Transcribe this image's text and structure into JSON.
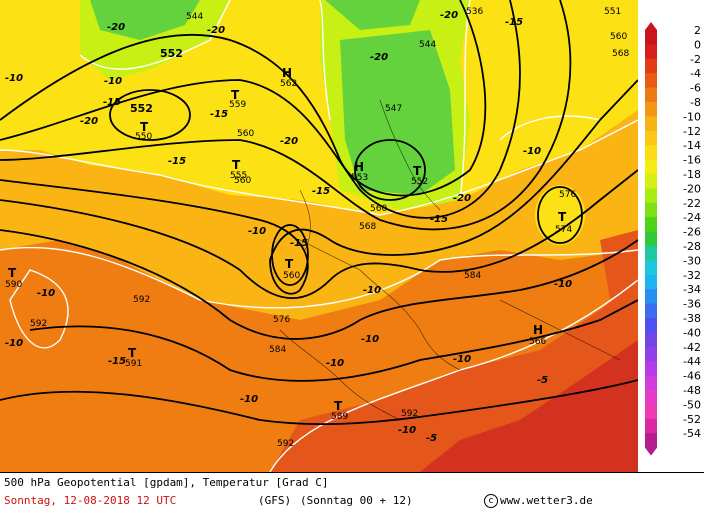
{
  "footer": {
    "title": "500 hPa Geopotential [gpdam], Temperatur [Grad C]",
    "date": "Sonntag, 12-08-2018  12 UTC",
    "model": "(GFS)",
    "run": "(Sonntag 00 + 12)",
    "credit": "www.wetter3.de",
    "credit_symbol": "c"
  },
  "legend": {
    "levels": [
      "2",
      "0",
      "-2",
      "-4",
      "-6",
      "-8",
      "-10",
      "-12",
      "-14",
      "-16",
      "-18",
      "-20",
      "-22",
      "-24",
      "-26",
      "-28",
      "-30",
      "-32",
      "-34",
      "-36",
      "-38",
      "-40",
      "-42",
      "-44",
      "-46",
      "-48",
      "-50",
      "-52",
      "-54"
    ],
    "colors": [
      "#c8141e",
      "#d81e1e",
      "#e43c14",
      "#ea5a14",
      "#ee7814",
      "#f29614",
      "#f6b414",
      "#fac814",
      "#fcdc14",
      "#f4ec14",
      "#d4f014",
      "#a8ec14",
      "#7ce014",
      "#50d214",
      "#30c83c",
      "#1ec8a0",
      "#1ec8dc",
      "#1eb4f0",
      "#2890f0",
      "#3c6cf0",
      "#5050f0",
      "#7046e6",
      "#9040e6",
      "#b43ce6",
      "#d23cdc",
      "#e63cc8",
      "#f03cb4",
      "#dc28a0",
      "#b41e8c"
    ]
  },
  "map": {
    "highs": [
      {
        "letter": "H",
        "value": "562"
      },
      {
        "letter": "H",
        "value": "553"
      },
      {
        "letter": "H",
        "value": "566"
      }
    ],
    "lows": [
      {
        "letter": "T",
        "value": "550"
      },
      {
        "letter": "T",
        "value": "559"
      },
      {
        "letter": "T",
        "value": "555"
      },
      {
        "letter": "T",
        "value": "560"
      },
      {
        "letter": "T",
        "value": "552"
      },
      {
        "letter": "T",
        "value": "574"
      },
      {
        "letter": "T",
        "value": "590"
      },
      {
        "letter": "T",
        "value": "591"
      },
      {
        "letter": "T",
        "value": "589"
      }
    ],
    "geopotential_labels": [
      "544",
      "536",
      "551",
      "560",
      "568",
      "552",
      "544",
      "552",
      "547",
      "560",
      "560",
      "576",
      "584",
      "568",
      "560",
      "576",
      "592",
      "592",
      "584",
      "592",
      "592"
    ],
    "temperature_labels": [
      "-20",
      "-20",
      "-20",
      "-15",
      "-15",
      "-15",
      "-10",
      "-10",
      "-20",
      "-20",
      "-20",
      "-15",
      "-20",
      "-15",
      "-15",
      "-10",
      "-15",
      "-10",
      "-10",
      "-10",
      "-10",
      "-10",
      "-10",
      "-10",
      "-5",
      "-5",
      "-10",
      "-15",
      "-10",
      "-10"
    ],
    "palette": {
      "cold": "#64d23c",
      "cool": "#c8f014",
      "mild": "#fce114",
      "warm": "#fab414",
      "hot": "#ef7d12",
      "very_hot": "#e4561a",
      "extreme": "#d2321e"
    }
  }
}
